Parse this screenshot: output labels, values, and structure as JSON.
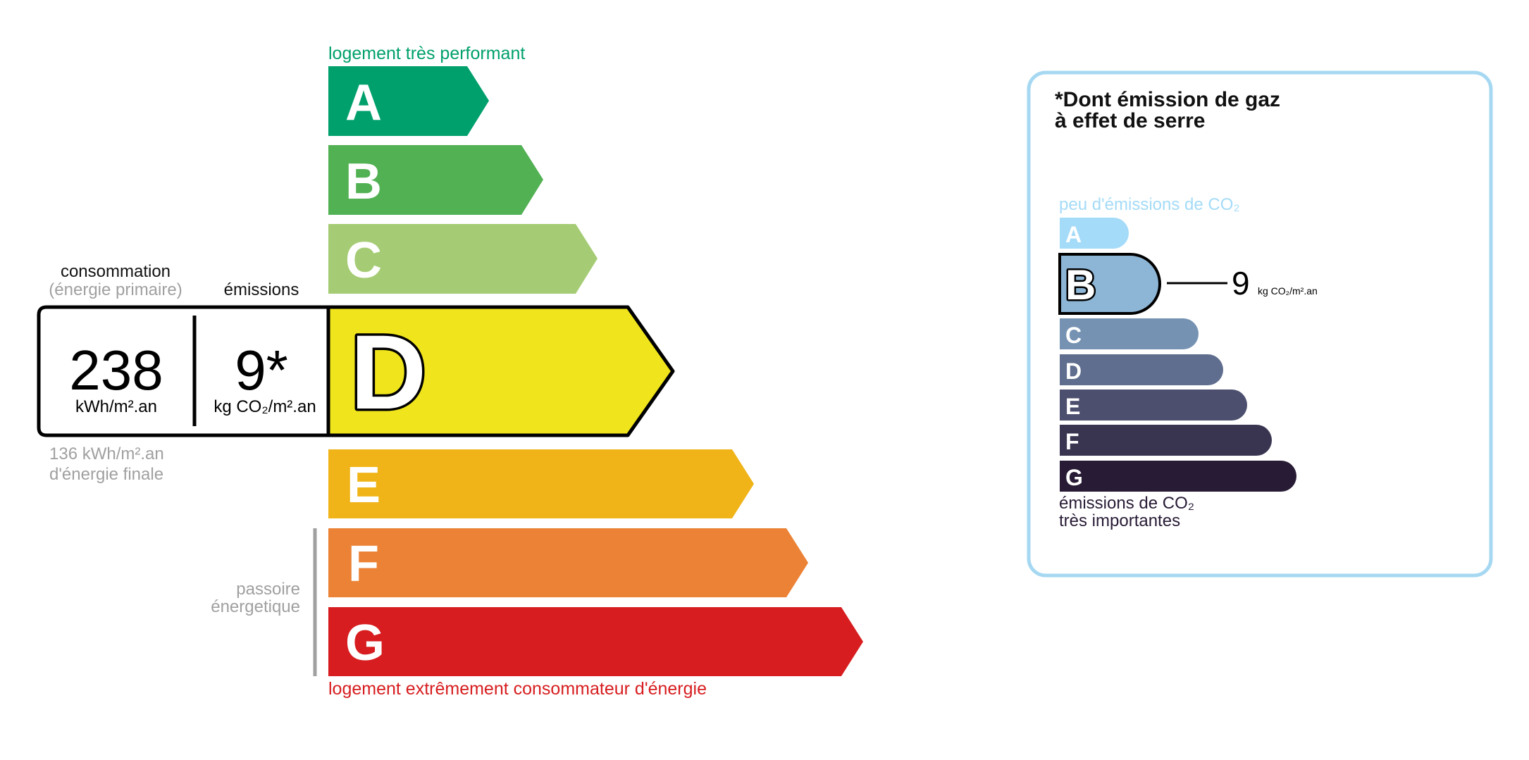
{
  "energy": {
    "top_label": "logement très performant",
    "bottom_label": "logement extrêmement consommateur d'énergie",
    "classes": [
      {
        "letter": "A",
        "color": "#00a06d"
      },
      {
        "letter": "B",
        "color": "#52b153"
      },
      {
        "letter": "C",
        "color": "#a5cc74"
      },
      {
        "letter": "D",
        "color": "#f0e51c"
      },
      {
        "letter": "E",
        "color": "#f0b418"
      },
      {
        "letter": "F",
        "color": "#eb8235"
      },
      {
        "letter": "G",
        "color": "#d71d1f"
      }
    ],
    "current_class": "D",
    "consumption_label": "consommation",
    "consumption_sublabel": "(énergie primaire)",
    "emissions_label": "émissions",
    "consumption_value": "238",
    "consumption_unit": "kWh/m².an",
    "emissions_value": "9*",
    "emissions_unit": "kg CO₂/m².an",
    "final_energy_line1": "136 kWh/m².an",
    "final_energy_line2": "d'énergie finale",
    "passoire_line1": "passoire",
    "passoire_line2": "énergetique"
  },
  "ges": {
    "title_line1": "*Dont émission de gaz",
    "title_line2": "à effet de serre",
    "top_label": "peu d'émissions de CO₂",
    "bottom_label_line1": "émissions de CO₂",
    "bottom_label_line2": "très importantes",
    "classes": [
      {
        "letter": "A",
        "color": "#a4dbf8"
      },
      {
        "letter": "B",
        "color": "#8db6d6"
      },
      {
        "letter": "C",
        "color": "#7592b2"
      },
      {
        "letter": "D",
        "color": "#5f6e8e"
      },
      {
        "letter": "E",
        "color": "#4c4f6e"
      },
      {
        "letter": "F",
        "color": "#393551"
      },
      {
        "letter": "G",
        "color": "#281b35"
      }
    ],
    "current_class": "B",
    "value": "9",
    "unit": "kg CO₂/m².an",
    "border_color": "#a6d8f2"
  }
}
